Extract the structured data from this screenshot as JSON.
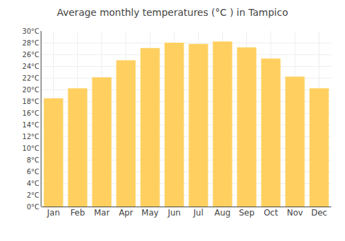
{
  "chart_data": {
    "type": "bar",
    "title": "Average monthly temperatures (°C ) in Tampico",
    "categories": [
      "Jan",
      "Feb",
      "Mar",
      "Apr",
      "May",
      "Jun",
      "Jul",
      "Aug",
      "Sep",
      "Oct",
      "Nov",
      "Dec"
    ],
    "values": [
      18.5,
      20.2,
      22.1,
      25.0,
      27.1,
      28.0,
      27.8,
      28.2,
      27.2,
      25.3,
      22.2,
      20.2
    ],
    "color": "#FFD060",
    "ylim": [
      0,
      30
    ],
    "yticks": [
      {
        "value": 0,
        "label": "0°C"
      },
      {
        "value": 2,
        "label": "2°C"
      },
      {
        "value": 4,
        "label": "4°C"
      },
      {
        "value": 6,
        "label": "6°C"
      },
      {
        "value": 8,
        "label": "8°C"
      },
      {
        "value": 10,
        "label": "10°C"
      },
      {
        "value": 12,
        "label": "12°C"
      },
      {
        "value": 14,
        "label": "14°C"
      },
      {
        "value": 16,
        "label": "16°C"
      },
      {
        "value": 18,
        "label": "18°C"
      },
      {
        "value": 20,
        "label": "20°C"
      },
      {
        "value": 22,
        "label": "22°C"
      },
      {
        "value": 24,
        "label": "24°C"
      },
      {
        "value": 26,
        "label": "26°C"
      },
      {
        "value": 28,
        "label": "28°C"
      },
      {
        "value": 30,
        "label": "30°C"
      }
    ],
    "grid": true
  }
}
